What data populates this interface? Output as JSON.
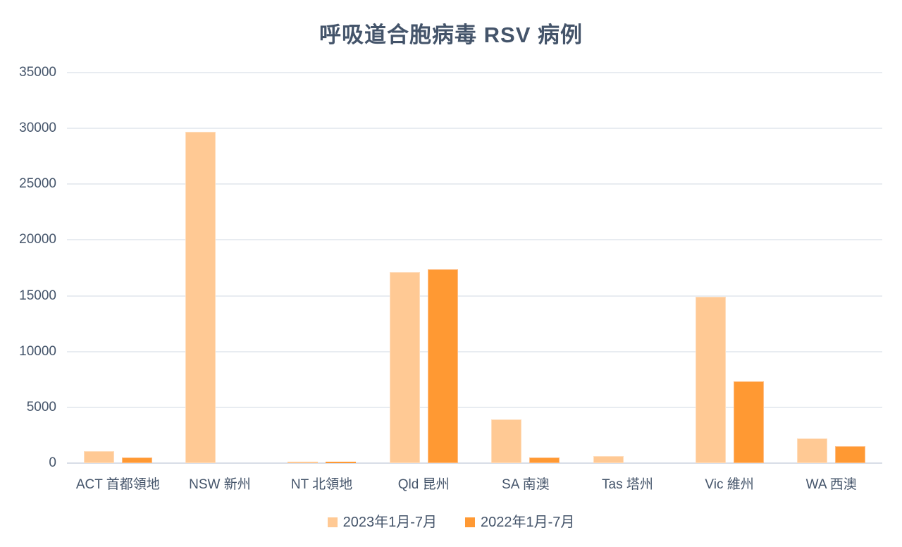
{
  "chart_data": {
    "type": "bar",
    "title": "呼吸道合胞病毒 RSV 病例",
    "categories": [
      "ACT 首都領地",
      "NSW 新州",
      "NT 北領地",
      "Qld 昆州",
      "SA 南澳",
      "Tas 塔州",
      "Vic 維州",
      "WA 西澳"
    ],
    "series": [
      {
        "name": "2023年1月-7月",
        "color": "#FFC994",
        "border_color": "#FFDDBC",
        "values": [
          1100,
          29700,
          150,
          17100,
          3900,
          650,
          14900,
          2200
        ]
      },
      {
        "name": "2022年1月-7月",
        "color": "#FF9933",
        "border_color": "#FFBE85",
        "values": [
          500,
          0,
          100,
          17400,
          500,
          0,
          7300,
          1500
        ]
      }
    ],
    "xlabel": "",
    "ylabel": "",
    "ylim": [
      0,
      35000
    ],
    "yticks": [
      0,
      5000,
      10000,
      15000,
      20000,
      25000,
      30000,
      35000
    ],
    "grid": true,
    "legend_position": "bottom"
  },
  "colors": {
    "text": "#44546A",
    "gridline": "#E8ECF1",
    "axis_line": "#D8DEE7",
    "background": "#FFFFFF"
  }
}
